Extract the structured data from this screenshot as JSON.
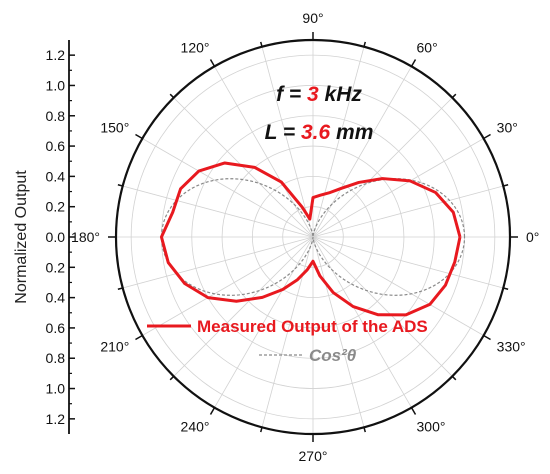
{
  "chart_data": {
    "type": "polar-line",
    "ylabel": "Normalized Output",
    "r_ticks": [
      "1.2",
      "1.0",
      "0.8",
      "0.6",
      "0.4",
      "0.2",
      "0.0",
      "0.2",
      "0.4",
      "0.6",
      "0.8",
      "1.0",
      "1.2"
    ],
    "r_max": 1.3,
    "angle_labels": [
      "0°",
      "30°",
      "60°",
      "90°",
      "120°",
      "150°",
      "180°",
      "210°",
      "240°",
      "270°",
      "300°",
      "330°"
    ],
    "angle_label_degrees": [
      0,
      30,
      60,
      90,
      120,
      150,
      180,
      210,
      240,
      270,
      300,
      330
    ],
    "grid": true,
    "legend_position": "lower-center",
    "annotation": {
      "line1": {
        "parts": [
          {
            "t": "f",
            "c": "#111111"
          },
          {
            "t": " = ",
            "c": "#111111"
          },
          {
            "t": "3",
            "c": "#e8191f"
          },
          {
            "t": " kHz",
            "c": "#111111"
          }
        ]
      },
      "line2": {
        "parts": [
          {
            "t": "L",
            "c": "#111111"
          },
          {
            "t": " = ",
            "c": "#111111"
          },
          {
            "t": "3.6",
            "c": "#e8191f"
          },
          {
            "t": " mm",
            "c": "#111111"
          }
        ]
      }
    },
    "series": [
      {
        "name": "Measured Output of the ADS",
        "color": "#e8191f",
        "style": "solid",
        "angles": [
          0,
          10,
          20,
          30,
          40,
          50,
          60,
          70,
          80,
          90,
          100,
          110,
          120,
          130,
          140,
          150,
          160,
          170,
          180,
          190,
          200,
          210,
          220,
          230,
          240,
          250,
          260,
          270,
          280,
          290,
          300,
          310,
          320,
          330,
          340,
          350,
          360
        ],
        "r": [
          0.97,
          0.94,
          0.86,
          0.74,
          0.6,
          0.47,
          0.37,
          0.31,
          0.28,
          0.26,
          0.12,
          0.21,
          0.42,
          0.6,
          0.76,
          0.87,
          0.93,
          0.94,
          1.0,
          0.97,
          0.9,
          0.8,
          0.66,
          0.52,
          0.4,
          0.3,
          0.22,
          0.16,
          0.26,
          0.39,
          0.53,
          0.67,
          0.8,
          0.89,
          0.93,
          0.95,
          0.97
        ]
      },
      {
        "name": "Cos²θ",
        "color": "#8a8a8a",
        "style": "dashed",
        "formula": "cos2"
      }
    ]
  }
}
